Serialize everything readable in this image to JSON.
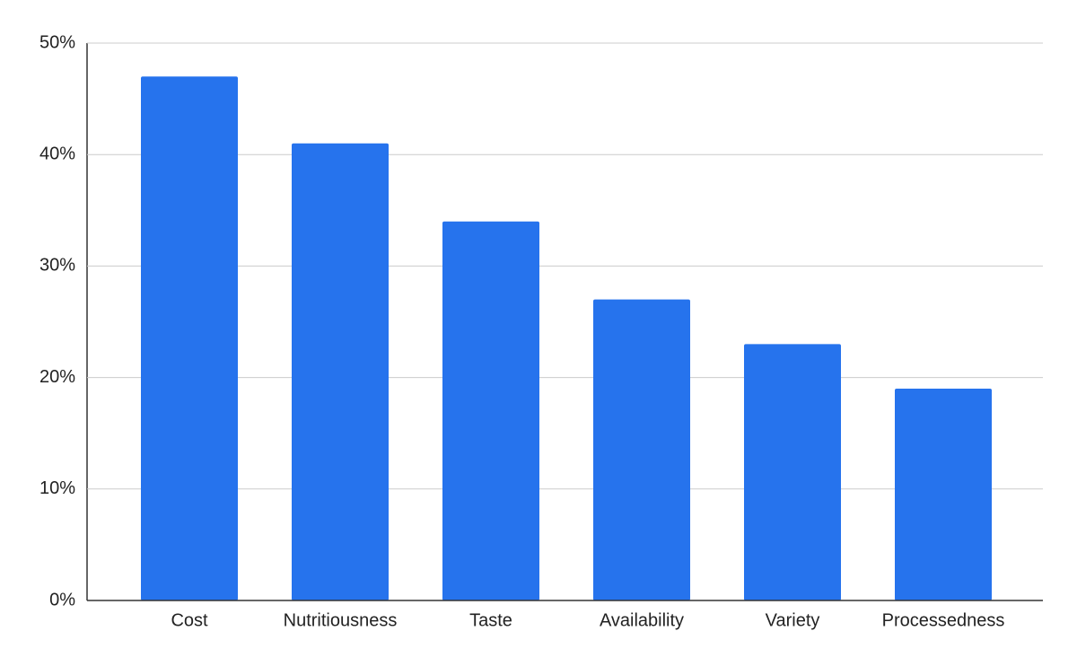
{
  "chart_data": {
    "type": "bar",
    "categories": [
      "Cost",
      "Nutritiousness",
      "Taste",
      "Availability",
      "Variety",
      "Processedness"
    ],
    "values": [
      47,
      41,
      34,
      27,
      23,
      19
    ],
    "color": "#2673ed",
    "ylim": [
      0,
      50
    ],
    "yticks": [
      {
        "value": 0,
        "label": "0%"
      },
      {
        "value": 10,
        "label": "10%"
      },
      {
        "value": 20,
        "label": "20%"
      },
      {
        "value": 30,
        "label": "30%"
      },
      {
        "value": 40,
        "label": "40%"
      },
      {
        "value": 50,
        "label": "50%"
      }
    ],
    "grid": true
  }
}
